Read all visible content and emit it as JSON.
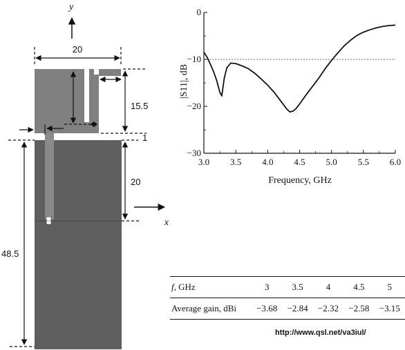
{
  "antenna": {
    "axis_y_label": "y",
    "axis_x_label": "x",
    "dim_width": "20",
    "dim_upper_height": "15.5",
    "dim_gap": "1",
    "dim_feed_height": "20",
    "dim_total_height": "48.5",
    "colors": {
      "patch": "#808080",
      "ground": "#5f5f5f",
      "feed": "#8a8a8a"
    }
  },
  "chart_data": {
    "type": "line",
    "xlabel": "Frequency, GHz",
    "ylabel": "|S11|, dB",
    "xlim": [
      3.0,
      6.0
    ],
    "ylim": [
      -30,
      0
    ],
    "x_ticks": [
      "3.0",
      "3.5",
      "4.0",
      "4.5",
      "5.0",
      "5.5",
      "6.0"
    ],
    "y_ticks": [
      "0",
      "-10",
      "-20",
      "-30"
    ],
    "reference_line": -10,
    "series": [
      {
        "x": [
          3.0,
          3.05,
          3.1,
          3.15,
          3.2,
          3.25,
          3.28,
          3.32,
          3.36,
          3.42,
          3.5,
          3.6,
          3.7,
          3.8,
          3.9,
          4.0,
          4.1,
          4.2,
          4.3,
          4.35,
          4.4,
          4.45,
          4.5,
          4.6,
          4.7,
          4.8,
          4.9,
          5.0,
          5.1,
          5.2,
          5.3,
          5.4,
          5.5,
          5.6,
          5.7,
          5.8,
          5.9,
          6.0
        ],
        "y": [
          -8.5,
          -9.5,
          -11.0,
          -12.5,
          -14.5,
          -17.0,
          -17.8,
          -14.0,
          -11.8,
          -10.8,
          -10.9,
          -11.4,
          -12.0,
          -13.0,
          -14.2,
          -15.5,
          -17.0,
          -18.8,
          -20.6,
          -21.2,
          -21.0,
          -20.4,
          -19.5,
          -17.6,
          -15.8,
          -14.0,
          -12.0,
          -10.2,
          -8.6,
          -7.1,
          -5.9,
          -4.9,
          -4.2,
          -3.7,
          -3.3,
          -3.0,
          -2.8,
          -2.7
        ]
      }
    ]
  },
  "gain_table": {
    "header_label": "f, GHz",
    "frequencies": [
      "3",
      "3.5",
      "4",
      "4.5",
      "5"
    ],
    "row_label": "Average gain, dBi",
    "values": [
      "−3.68",
      "−2.84",
      "−2.32",
      "−2.58",
      "−3.15"
    ]
  },
  "source_url": "http://www.qsl.net/va3iul/"
}
